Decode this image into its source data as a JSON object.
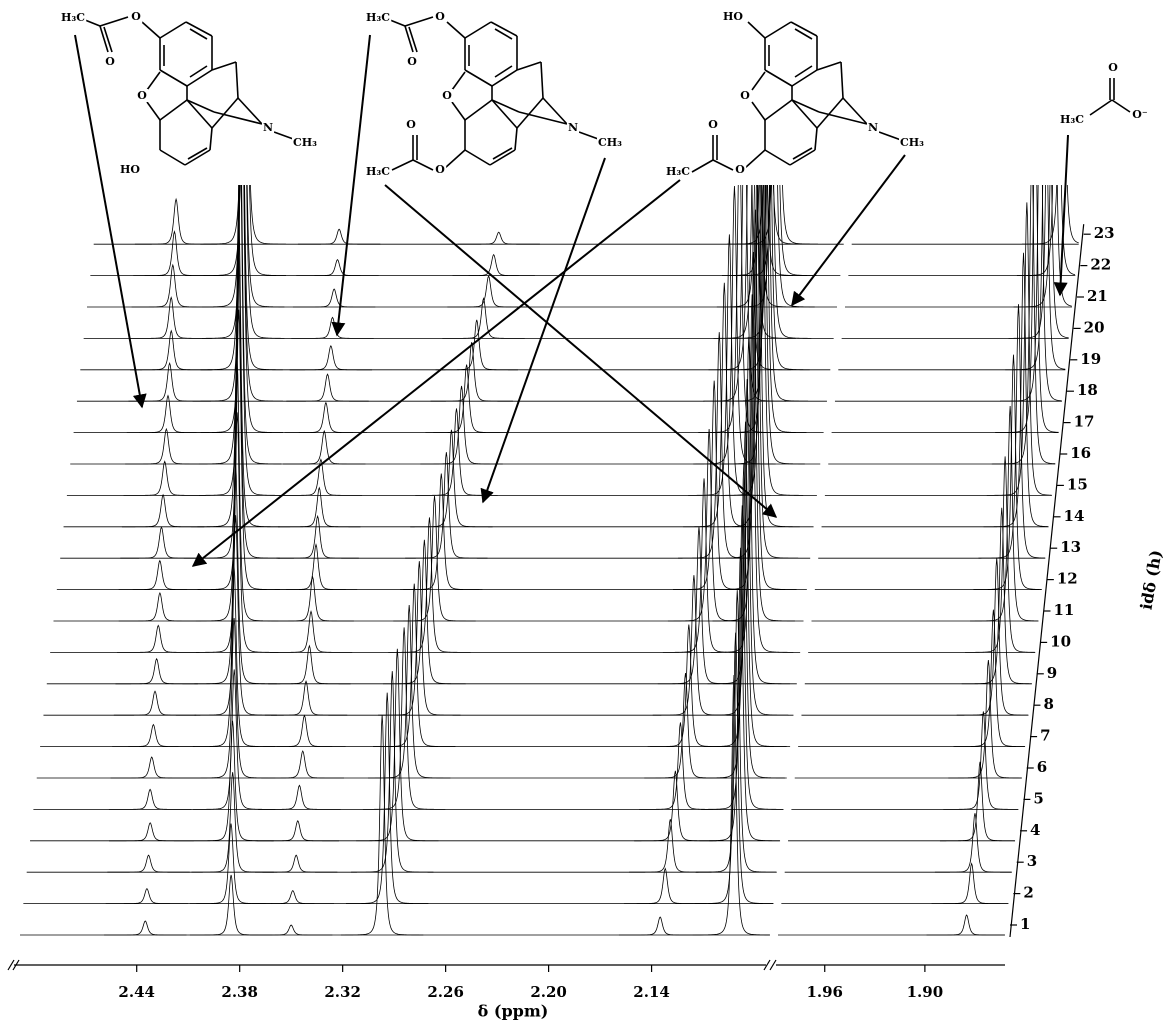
{
  "chart_data": {
    "type": "waterfall",
    "x_label": "δ (ppm)",
    "z_label": "idδ (h)",
    "color": "#000000",
    "xlim": [
      2.508,
      1.852
    ],
    "xbreak": [
      2.071,
      1.988
    ],
    "xticks": [
      2.44,
      2.38,
      2.32,
      2.26,
      {
        "value": 2.2,
        "label": "2.20"
      },
      2.14,
      1.96,
      {
        "value": 1.9,
        "label": "1.90"
      }
    ],
    "zlim": [
      1,
      23
    ],
    "zticks": [
      1,
      2,
      3,
      4,
      5,
      6,
      7,
      8,
      9,
      10,
      11,
      12,
      13,
      14,
      15,
      16,
      17,
      18,
      19,
      20,
      21,
      22,
      23
    ],
    "series": [
      {
        "x": [
          2.435,
          2.436,
          2.437,
          2.438,
          2.44,
          2.441,
          2.442,
          2.443,
          2.444,
          2.445,
          2.446,
          2.448,
          2.449,
          2.45,
          2.451,
          2.452,
          2.453,
          2.454,
          2.455,
          2.457,
          2.458,
          2.459,
          2.46
        ],
        "values": [
          14,
          15,
          17,
          18,
          20,
          21,
          22,
          24,
          25,
          27,
          28,
          29,
          31,
          32,
          34,
          35,
          37,
          38,
          39,
          41,
          42,
          44,
          45
        ]
      },
      {
        "x": [
          2.385,
          2.387,
          2.388,
          2.39,
          2.391,
          2.393,
          2.395,
          2.396,
          2.398,
          2.399,
          2.401,
          2.402,
          2.404,
          2.406,
          2.407,
          2.409,
          2.41,
          2.412,
          2.414,
          2.415,
          2.417,
          2.418,
          2.42
        ],
        "values": [
          60,
          80,
          100,
          120,
          140,
          160,
          180,
          200,
          220,
          240,
          260,
          280,
          300,
          320,
          340,
          360,
          380,
          400,
          420,
          440,
          460,
          480,
          500
        ]
      },
      {
        "x": [
          2.35,
          2.351,
          2.351,
          2.352,
          2.353,
          2.353,
          2.354,
          2.355,
          2.355,
          2.356,
          2.357,
          2.357,
          2.358,
          2.359,
          2.36,
          2.36,
          2.361,
          2.362,
          2.362,
          2.363,
          2.364,
          2.364,
          2.365
        ],
        "values": [
          10,
          13,
          17,
          20,
          24,
          27,
          31,
          34,
          38,
          41,
          44,
          45,
          42,
          39,
          36,
          33,
          30,
          27,
          24,
          21,
          18,
          16,
          15
        ]
      },
      {
        "x": [
          2.297,
          2.296,
          2.295,
          2.294,
          2.292,
          2.291,
          2.29,
          2.289,
          2.288,
          2.287,
          2.286,
          2.284,
          2.283,
          2.282,
          2.281,
          2.28,
          2.279,
          2.278,
          2.277,
          2.275,
          2.274,
          2.273,
          2.272
        ],
        "values": [
          220,
          211,
          201,
          192,
          182,
          173,
          163,
          154,
          144,
          135,
          125,
          116,
          106,
          97,
          87,
          78,
          68,
          59,
          50,
          40,
          31,
          21,
          12
        ]
      },
      {
        "x": [
          2.135,
          2.134,
          2.133,
          2.132,
          2.131,
          2.13,
          2.13,
          2.129,
          2.128,
          2.127,
          2.126,
          2.125,
          2.124,
          2.123,
          2.122,
          2.121,
          2.12,
          2.119,
          2.118,
          2.117,
          2.117,
          2.116,
          2.115
        ],
        "values": [
          18,
          35,
          53,
          70,
          87,
          105,
          122,
          140,
          157,
          174,
          192,
          209,
          226,
          244,
          261,
          278,
          296,
          313,
          331,
          348,
          365,
          383,
          400
        ]
      },
      {
        "x": [
          2.092,
          2.093,
          2.094,
          2.094,
          2.095,
          2.096,
          2.097,
          2.098,
          2.099,
          2.099,
          2.1,
          2.101,
          2.102,
          2.103,
          2.103,
          2.104,
          2.105,
          2.106,
          2.107,
          2.108,
          2.108,
          2.109,
          2.11
        ],
        "values": [
          260,
          271,
          282,
          293,
          304,
          315,
          325,
          336,
          347,
          358,
          369,
          380,
          391,
          402,
          413,
          424,
          435,
          445,
          456,
          467,
          478,
          489,
          500
        ]
      },
      {
        "x": [
          1.875,
          1.874,
          1.874,
          1.873,
          1.873,
          1.872,
          1.871,
          1.871,
          1.87,
          1.87,
          1.869,
          1.869,
          1.868,
          1.867,
          1.867,
          1.866,
          1.866,
          1.865,
          1.864,
          1.864,
          1.863,
          1.863,
          1.862
        ],
        "values": [
          20,
          40,
          59,
          79,
          98,
          118,
          137,
          157,
          176,
          196,
          215,
          235,
          254,
          274,
          293,
          313,
          332,
          352,
          371,
          391,
          410,
          430,
          449
        ]
      }
    ]
  },
  "structures": [
    {
      "labels": [
        "H₃C",
        "O",
        "O",
        "O",
        "HO",
        "N",
        "CH₃"
      ]
    },
    {
      "labels": [
        "H₃C",
        "O",
        "O",
        "O",
        "O",
        "H₃C",
        "O",
        "N",
        "CH₃"
      ]
    },
    {
      "labels": [
        "HO",
        "O",
        "O",
        "H₃C",
        "O",
        "N",
        "CH₃"
      ]
    },
    {
      "labels": [
        "O",
        "H₃C",
        "O⁻"
      ]
    }
  ]
}
